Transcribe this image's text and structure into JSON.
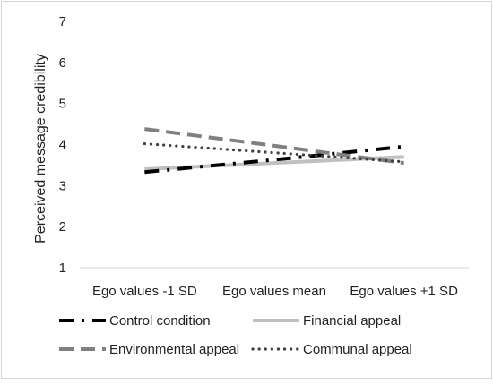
{
  "chart_data": {
    "type": "line",
    "categories": [
      "Ego values -1 SD",
      "Ego values mean",
      "Ego values +1 SD"
    ],
    "ylabel": "Perceived message credibility",
    "xlabel": "",
    "ylim": [
      1,
      7
    ],
    "yticks": [
      1,
      2,
      3,
      4,
      5,
      6,
      7
    ],
    "grid": false,
    "legend_position": "bottom",
    "series": [
      {
        "name": "Control condition",
        "values": [
          3.33,
          3.63,
          3.95
        ],
        "color": "#000000",
        "style": "dash-dot"
      },
      {
        "name": "Financial appeal",
        "values": [
          3.4,
          3.55,
          3.7
        ],
        "color": "#c0c0c0",
        "style": "solid"
      },
      {
        "name": "Environmental appeal",
        "values": [
          4.38,
          3.97,
          3.55
        ],
        "color": "#808080",
        "style": "dash"
      },
      {
        "name": "Communal appeal",
        "values": [
          4.02,
          3.8,
          3.58
        ],
        "color": "#404040",
        "style": "dot"
      }
    ]
  }
}
